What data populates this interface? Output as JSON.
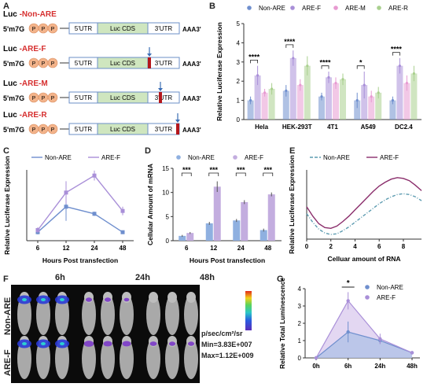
{
  "panels": {
    "A": {
      "letter": "A",
      "constructs": [
        {
          "prefix": "Luc ",
          "name": "-Non-ARE",
          "cap": "5'm7G",
          "p": "P",
          "utr5": "5'UTR",
          "cds": "Luc CDS",
          "utr3": "3'UTR",
          "tail": "AAA3'",
          "are": false
        },
        {
          "prefix": "Luc ",
          "name": "-ARE-F",
          "cap": "5'm7G",
          "p": "P",
          "utr5": "5'UTR",
          "cds": "Luc CDS",
          "utr3": "3'UTR",
          "tail": "AAA3'",
          "are": "start"
        },
        {
          "prefix": "Luc ",
          "name": "-ARE-M",
          "cap": "5'm7G",
          "p": "P",
          "utr5": "5'UTR",
          "cds": "Luc CDS",
          "utr3": "3'UTR",
          "tail": "AAA3'",
          "are": "middle"
        },
        {
          "prefix": "Luc ",
          "name": "-ARE-R",
          "cap": "5'm7G",
          "p": "P",
          "utr5": "5'UTR",
          "cds": "Luc CDS",
          "utr3": "3'UTR",
          "tail": "AAA3'",
          "are": "end"
        }
      ],
      "colors": {
        "name": "#d62f2f",
        "cap_circle": "#f3b38a",
        "utr": "#ffffff",
        "cds": "#cfe6bf",
        "are": "#b4161b",
        "arrow": "#3b6db5"
      }
    },
    "B": {
      "letter": "B"
    },
    "C": {
      "letter": "C"
    },
    "D": {
      "letter": "D"
    },
    "E": {
      "letter": "E"
    },
    "F": {
      "letter": "F",
      "time_labels": [
        "6h",
        "24h",
        "48h"
      ],
      "row_labels": [
        "Non-ARE",
        "ARE-F"
      ],
      "scale_unit": "p/sec/cm²/sr",
      "scale_min": "Min=3.83E+007",
      "scale_max": "Max=1.12E+009"
    },
    "G": {
      "letter": "G"
    }
  },
  "chart_data": [
    {
      "id": "B",
      "type": "bar",
      "ylabel": "Relative Luciferase Expression",
      "categories": [
        "Hela",
        "HEK-293T",
        "4T1",
        "A549",
        "DC2.4"
      ],
      "ylim": [
        0,
        5
      ],
      "yticks": [
        0,
        1,
        2,
        3,
        4,
        5
      ],
      "legend_position": "top",
      "series": [
        {
          "name": "Non-ARE",
          "color": "#6f8fce",
          "values": [
            1.0,
            1.5,
            1.2,
            1.0,
            1.0
          ],
          "errors": [
            0.2,
            0.3,
            0.2,
            0.4,
            0.2
          ]
        },
        {
          "name": "ARE-F",
          "color": "#a98fd8",
          "values": [
            2.3,
            3.2,
            2.2,
            1.8,
            2.8
          ],
          "errors": [
            0.5,
            0.4,
            0.3,
            0.7,
            0.4
          ]
        },
        {
          "name": "ARE-M",
          "color": "#e79ad1",
          "values": [
            1.4,
            1.8,
            1.9,
            1.2,
            1.9
          ],
          "errors": [
            0.2,
            0.3,
            0.3,
            0.3,
            0.4
          ]
        },
        {
          "name": "ARE-R",
          "color": "#a9d08e",
          "values": [
            1.6,
            2.8,
            2.1,
            1.4,
            2.4
          ],
          "errors": [
            0.3,
            0.5,
            0.3,
            0.3,
            0.4
          ]
        }
      ],
      "significance": [
        "****",
        "****",
        "****",
        "*",
        "****"
      ]
    },
    {
      "id": "C",
      "type": "line",
      "xlabel": "Hours Post transfection",
      "ylabel": "Relative Luciferase Expression",
      "categories": [
        "6",
        "12",
        "24",
        "48"
      ],
      "ylim": [
        0,
        10
      ],
      "legend_position": "top",
      "series": [
        {
          "name": "Non-ARE",
          "color": "#6f8fce",
          "values": [
            1.2,
            4.8,
            3.8,
            1.2
          ],
          "errors": [
            0.3,
            2.0,
            0.3,
            0.2
          ]
        },
        {
          "name": "ARE-F",
          "color": "#a98fd8",
          "values": [
            1.5,
            6.8,
            9.2,
            4.2
          ],
          "errors": [
            0.4,
            1.6,
            0.7,
            0.6
          ]
        }
      ]
    },
    {
      "id": "D",
      "type": "bar",
      "xlabel": "Hours Post transfection",
      "ylabel": "Cellular Amount of mRNA",
      "categories": [
        "6",
        "12",
        "24",
        "48"
      ],
      "ylim": [
        0,
        15
      ],
      "yticks": [
        0,
        5,
        10,
        15
      ],
      "legend_position": "top",
      "series": [
        {
          "name": "Non-ARE",
          "color": "#8fb0e0",
          "values": [
            1.0,
            3.6,
            4.2,
            2.2
          ],
          "errors": [
            0.2,
            0.3,
            0.3,
            0.3
          ]
        },
        {
          "name": "ARE-F",
          "color": "#c3addf",
          "values": [
            1.6,
            11.2,
            8.0,
            9.6
          ],
          "errors": [
            0.2,
            1.1,
            0.4,
            0.4
          ]
        }
      ],
      "significance": [
        "***",
        "***",
        "***",
        "***"
      ]
    },
    {
      "id": "E",
      "type": "line",
      "xlabel": "Celluar amount of  RNA",
      "ylabel": "Relative Luciferase Expression",
      "xticks": [
        0,
        2,
        4,
        6,
        8
      ],
      "xlim": [
        0,
        9.5
      ],
      "ylim": [
        -1,
        8
      ],
      "legend_position": "top",
      "series": [
        {
          "name": "Non-ARE",
          "color": "#5c9bb0",
          "dash": true,
          "x": [
            0,
            0.5,
            1,
            1.5,
            2,
            2.5,
            3,
            3.5,
            4,
            4.5,
            5,
            5.5,
            6,
            6.5,
            7,
            7.5,
            8,
            8.5,
            9,
            9.5
          ],
          "y": [
            2.3,
            1.2,
            0.3,
            -0.2,
            -0.4,
            -0.3,
            0.1,
            0.6,
            1.2,
            1.8,
            2.4,
            3.0,
            3.6,
            4.1,
            4.5,
            4.8,
            4.9,
            4.8,
            4.5,
            4.0
          ]
        },
        {
          "name": "ARE-F",
          "color": "#8a2d6b",
          "dash": false,
          "x": [
            0,
            0.5,
            1,
            1.5,
            2,
            2.5,
            3,
            3.5,
            4,
            4.5,
            5,
            5.5,
            6,
            6.5,
            7,
            7.5,
            8,
            8.5,
            9,
            9.5
          ],
          "y": [
            3.2,
            2.0,
            1.0,
            0.5,
            0.4,
            0.7,
            1.3,
            2.0,
            2.8,
            3.6,
            4.4,
            5.2,
            5.9,
            6.4,
            6.8,
            7.0,
            6.9,
            6.6,
            6.0,
            5.3
          ]
        }
      ]
    },
    {
      "id": "G",
      "type": "area",
      "ylabel": "Relative Total Luminescence",
      "categories": [
        "0h",
        "6h",
        "24h",
        "48h"
      ],
      "ylim": [
        0,
        4
      ],
      "yticks": [
        0,
        1,
        2,
        3,
        4
      ],
      "legend_position": "top-right",
      "series": [
        {
          "name": "Non-ARE",
          "color": "#6f8fce",
          "fill": "#a9bfe6",
          "values": [
            0,
            1.5,
            1.0,
            0.3
          ],
          "errors": [
            0,
            0.6,
            0.2,
            0.1
          ]
        },
        {
          "name": "ARE-F",
          "color": "#a98fd8",
          "fill": "#d7c6ec",
          "values": [
            0,
            3.3,
            1.1,
            0.3
          ],
          "errors": [
            0,
            0.5,
            0.3,
            0.1
          ]
        }
      ],
      "significance": [
        "",
        "*",
        "",
        ""
      ]
    }
  ]
}
